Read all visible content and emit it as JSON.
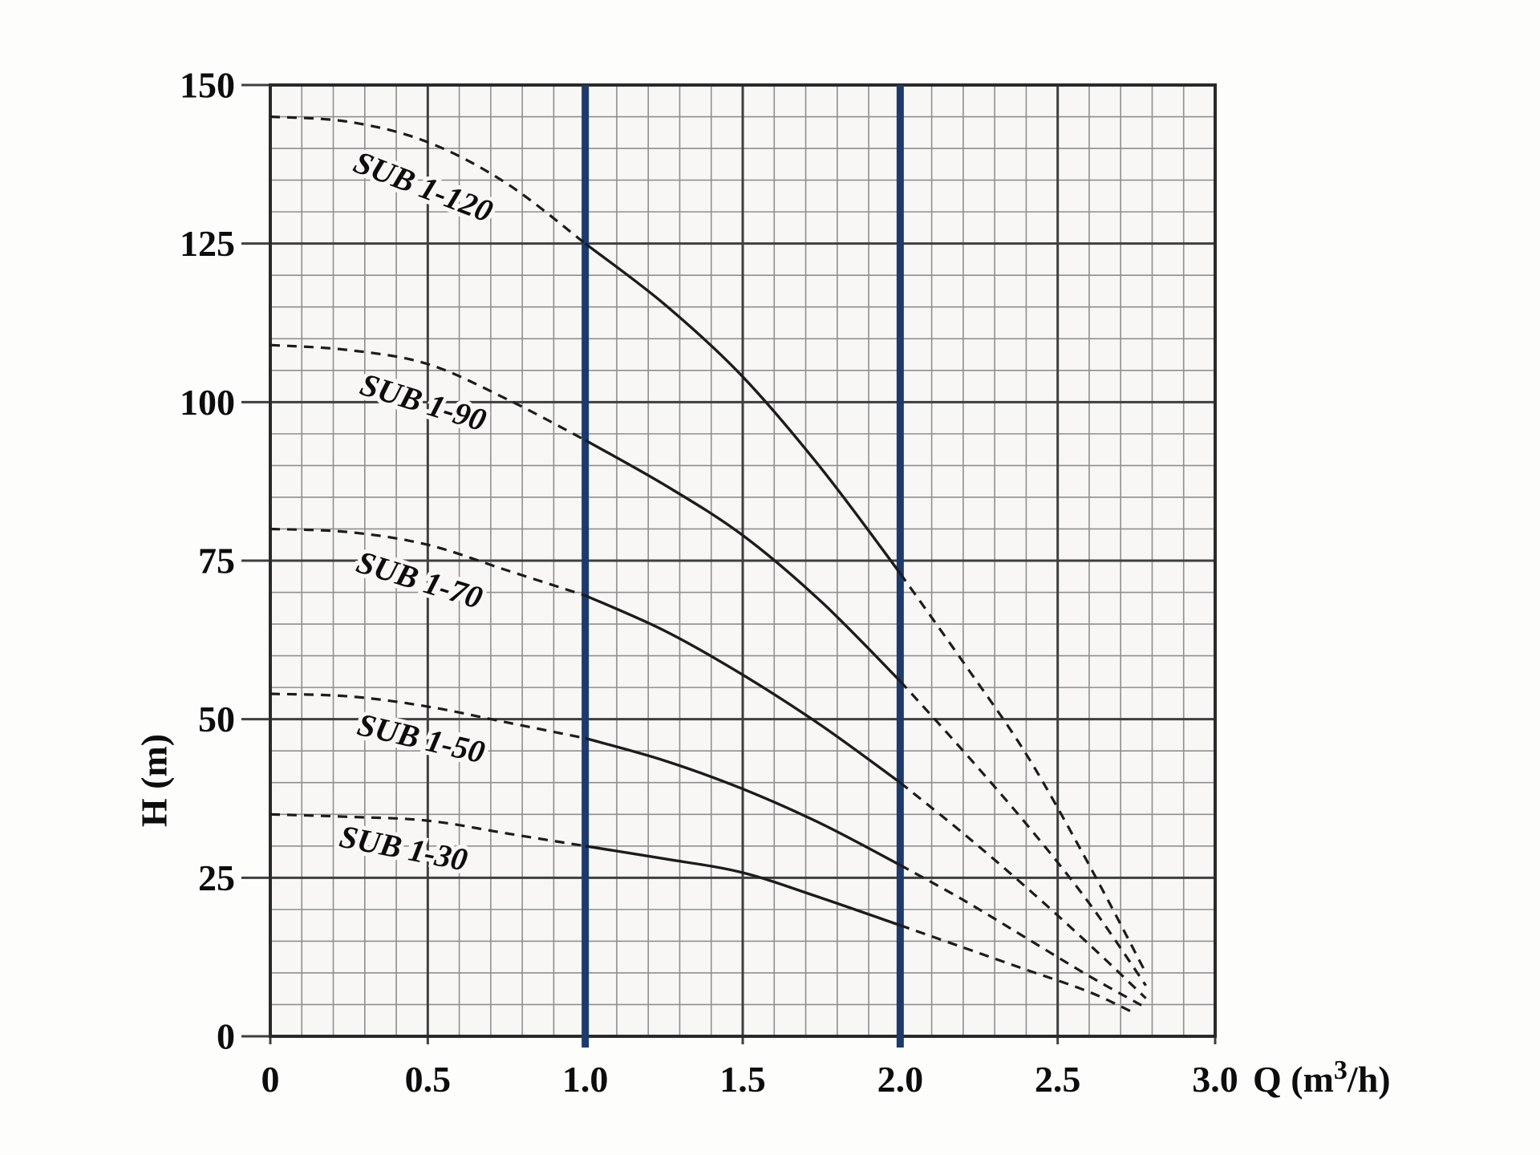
{
  "figure": {
    "description": "Pump performance curves, head H versus flow Q"
  },
  "chart_data": {
    "type": "line",
    "title": "",
    "xlabel_parts": {
      "prefix": "Q (m",
      "sup": "3",
      "suffix": "/h)"
    },
    "ylabel": "H (m)",
    "xlim": [
      0,
      3.0
    ],
    "ylim": [
      0,
      150
    ],
    "x_major_step": 0.5,
    "x_minor_step": 0.1,
    "y_major_step": 25,
    "y_minor_step": 5,
    "grid": true,
    "x_ticks": [
      0,
      0.5,
      1.0,
      1.5,
      2.0,
      2.5,
      3.0
    ],
    "x_tick_labels": [
      "0",
      "0.5",
      "1.0",
      "1.5",
      "2.0",
      "2.5",
      "3.0"
    ],
    "y_ticks": [
      0,
      25,
      50,
      75,
      100,
      125,
      150
    ],
    "y_tick_labels": [
      "0",
      "25",
      "50",
      "75",
      "100",
      "125",
      "150"
    ],
    "operating_limits_q": [
      1.0,
      2.0
    ],
    "colors": {
      "page_bg": "#fdfdfc",
      "plot_bg": "#f8f7f5",
      "grid_minor": "#8f8f8f",
      "grid_major": "#3f3f3f",
      "border": "#2a2a2a",
      "limit_line": "#1c3a6b",
      "curve": "#1c1c1c",
      "text": "#0d0d0d"
    },
    "series": [
      {
        "name": "SUB 1-120",
        "label": {
          "q": 0.486,
          "h": 134,
          "angle": 21
        },
        "dashed_left": [
          [
            0,
            145
          ],
          [
            0.25,
            144.2
          ],
          [
            0.5,
            141
          ],
          [
            0.75,
            134.5
          ],
          [
            1.0,
            125
          ]
        ],
        "solid": [
          [
            1.0,
            125
          ],
          [
            1.25,
            115.5
          ],
          [
            1.5,
            104
          ],
          [
            1.75,
            89.5
          ],
          [
            2.0,
            73
          ]
        ],
        "dashed_right": [
          [
            2.0,
            73
          ],
          [
            2.2,
            59
          ],
          [
            2.4,
            44.5
          ],
          [
            2.6,
            27
          ],
          [
            2.78,
            10
          ]
        ]
      },
      {
        "name": "SUB 1-90",
        "label": {
          "q": 0.486,
          "h": 100,
          "angle": 17
        },
        "dashed_left": [
          [
            0,
            109
          ],
          [
            0.25,
            108.2
          ],
          [
            0.5,
            106
          ],
          [
            0.75,
            100.5
          ],
          [
            1.0,
            94
          ]
        ],
        "solid": [
          [
            1.0,
            94
          ],
          [
            1.25,
            87
          ],
          [
            1.5,
            79
          ],
          [
            1.75,
            68.5
          ],
          [
            2.0,
            56
          ]
        ],
        "dashed_right": [
          [
            2.0,
            56
          ],
          [
            2.2,
            45
          ],
          [
            2.4,
            33.5
          ],
          [
            2.6,
            21
          ],
          [
            2.78,
            8
          ]
        ]
      },
      {
        "name": "SUB 1-70",
        "label": {
          "q": 0.474,
          "h": 72,
          "angle": 17
        },
        "dashed_left": [
          [
            0,
            80
          ],
          [
            0.25,
            79.5
          ],
          [
            0.5,
            77.5
          ],
          [
            0.75,
            73.5
          ],
          [
            1.0,
            69.5
          ]
        ],
        "solid": [
          [
            1.0,
            69.5
          ],
          [
            1.25,
            64
          ],
          [
            1.5,
            57
          ],
          [
            1.75,
            49
          ],
          [
            2.0,
            40
          ]
        ],
        "dashed_right": [
          [
            2.0,
            40
          ],
          [
            2.2,
            32
          ],
          [
            2.4,
            23.5
          ],
          [
            2.6,
            14.5
          ],
          [
            2.78,
            6
          ]
        ]
      },
      {
        "name": "SUB 1-50",
        "label": {
          "q": 0.479,
          "h": 47,
          "angle": 13
        },
        "dashed_left": [
          [
            0,
            54
          ],
          [
            0.25,
            53.6
          ],
          [
            0.5,
            52
          ],
          [
            0.75,
            49.5
          ],
          [
            1.0,
            47
          ]
        ],
        "solid": [
          [
            1.0,
            47
          ],
          [
            1.25,
            43.5
          ],
          [
            1.5,
            39
          ],
          [
            1.75,
            33.5
          ],
          [
            2.0,
            27
          ]
        ],
        "dashed_right": [
          [
            2.0,
            27
          ],
          [
            2.2,
            21.5
          ],
          [
            2.4,
            15.5
          ],
          [
            2.6,
            9.5
          ],
          [
            2.78,
            4.5
          ]
        ]
      },
      {
        "name": "SUB 1-30",
        "label": {
          "q": 0.423,
          "h": 29.7,
          "angle": 11
        },
        "dashed_left": [
          [
            0,
            35
          ],
          [
            0.25,
            34.6
          ],
          [
            0.5,
            34
          ],
          [
            0.75,
            32
          ],
          [
            1.0,
            30
          ]
        ],
        "solid": [
          [
            1.0,
            30
          ],
          [
            1.25,
            28
          ],
          [
            1.5,
            25.8
          ],
          [
            1.75,
            21.8
          ],
          [
            2.0,
            17.5
          ]
        ],
        "dashed_right": [
          [
            2.0,
            17.5
          ],
          [
            2.2,
            14
          ],
          [
            2.4,
            10.5
          ],
          [
            2.6,
            7
          ],
          [
            2.75,
            3.5
          ]
        ]
      }
    ]
  }
}
